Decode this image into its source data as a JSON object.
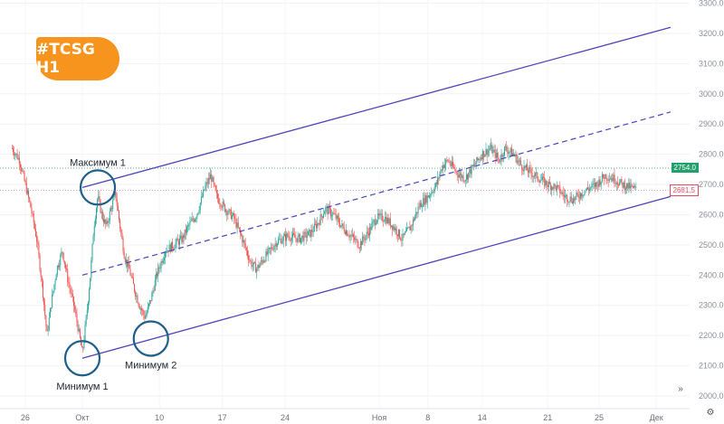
{
  "tag": {
    "label": "#TCSG H1",
    "color": "#f7941d"
  },
  "chart_data": {
    "type": "candlestick",
    "y_ticks": [
      "2000.0",
      "2100.0",
      "2200.0",
      "2300.0",
      "2400.0",
      "2500.0",
      "2600.0",
      "2700.0",
      "2800.0",
      "2900.0",
      "3000.0",
      "3100.0",
      "3200.0",
      "3300.0"
    ],
    "x_ticks": [
      "26",
      "Окт",
      "10",
      "17",
      "24",
      "Ноя",
      "8",
      "14",
      "21",
      "25",
      "Дек"
    ],
    "ylim": [
      2000,
      3300
    ],
    "price_labels": {
      "current": "2754.0",
      "last": "2681.5"
    },
    "price_colors": {
      "up": "#26a69a",
      "down": "#ef5350"
    },
    "channel": {
      "color": "#4b45b8",
      "upper": [
        [
          0.0,
          2690
        ],
        [
          10.3,
          3220
        ]
      ],
      "middle": [
        [
          0.0,
          2400
        ],
        [
          10.3,
          2940
        ]
      ],
      "lower": [
        [
          0.0,
          2125
        ],
        [
          10.3,
          2660
        ]
      ]
    },
    "annotations": [
      {
        "label": "Максимум 1",
        "x": 0.27,
        "y": 2690
      },
      {
        "label": "Минимум 1",
        "x": 0.0,
        "y": 2125
      },
      {
        "label": "Минимум 2",
        "x": 1.2,
        "y": 2190
      }
    ],
    "price_path": [
      [
        -1.23,
        2820
      ],
      [
        -1.1,
        2780
      ],
      [
        -1.0,
        2700
      ],
      [
        -0.9,
        2620
      ],
      [
        -0.8,
        2520
      ],
      [
        -0.7,
        2360
      ],
      [
        -0.62,
        2200
      ],
      [
        -0.55,
        2300
      ],
      [
        -0.45,
        2420
      ],
      [
        -0.35,
        2480
      ],
      [
        -0.25,
        2380
      ],
      [
        -0.15,
        2300
      ],
      [
        -0.08,
        2230
      ],
      [
        0.0,
        2140
      ],
      [
        0.08,
        2280
      ],
      [
        0.14,
        2400
      ],
      [
        0.2,
        2560
      ],
      [
        0.27,
        2660
      ],
      [
        0.34,
        2600
      ],
      [
        0.42,
        2560
      ],
      [
        0.5,
        2620
      ],
      [
        0.58,
        2670
      ],
      [
        0.66,
        2560
      ],
      [
        0.74,
        2460
      ],
      [
        0.82,
        2420
      ],
      [
        0.9,
        2360
      ],
      [
        1.0,
        2300
      ],
      [
        1.1,
        2260
      ],
      [
        1.2,
        2320
      ],
      [
        1.3,
        2400
      ],
      [
        1.45,
        2480
      ],
      [
        1.6,
        2500
      ],
      [
        1.75,
        2520
      ],
      [
        1.85,
        2560
      ],
      [
        2.0,
        2600
      ],
      [
        2.15,
        2690
      ],
      [
        2.25,
        2730
      ],
      [
        2.35,
        2660
      ],
      [
        2.5,
        2620
      ],
      [
        2.65,
        2590
      ],
      [
        2.8,
        2520
      ],
      [
        2.95,
        2440
      ],
      [
        3.05,
        2420
      ],
      [
        3.2,
        2460
      ],
      [
        3.4,
        2510
      ],
      [
        3.6,
        2530
      ],
      [
        3.8,
        2520
      ],
      [
        4.0,
        2540
      ],
      [
        4.15,
        2580
      ],
      [
        4.25,
        2620
      ],
      [
        4.4,
        2600
      ],
      [
        4.55,
        2560
      ],
      [
        4.7,
        2530
      ],
      [
        4.85,
        2500
      ],
      [
        5.0,
        2540
      ],
      [
        5.15,
        2590
      ],
      [
        5.3,
        2590
      ],
      [
        5.45,
        2560
      ],
      [
        5.6,
        2520
      ],
      [
        5.75,
        2560
      ],
      [
        5.9,
        2630
      ],
      [
        6.05,
        2660
      ],
      [
        6.2,
        2700
      ],
      [
        6.3,
        2760
      ],
      [
        6.4,
        2780
      ],
      [
        6.55,
        2740
      ],
      [
        6.7,
        2720
      ],
      [
        6.85,
        2760
      ],
      [
        7.0,
        2800
      ],
      [
        7.15,
        2820
      ],
      [
        7.3,
        2780
      ],
      [
        7.4,
        2820
      ],
      [
        7.55,
        2800
      ],
      [
        7.7,
        2760
      ],
      [
        7.85,
        2740
      ],
      [
        8.0,
        2720
      ],
      [
        8.15,
        2700
      ],
      [
        8.3,
        2690
      ],
      [
        8.45,
        2660
      ],
      [
        8.6,
        2650
      ],
      [
        8.8,
        2680
      ],
      [
        9.0,
        2700
      ],
      [
        9.15,
        2730
      ],
      [
        9.3,
        2720
      ],
      [
        9.45,
        2700
      ],
      [
        9.6,
        2690
      ],
      [
        9.7,
        2682
      ]
    ]
  }
}
